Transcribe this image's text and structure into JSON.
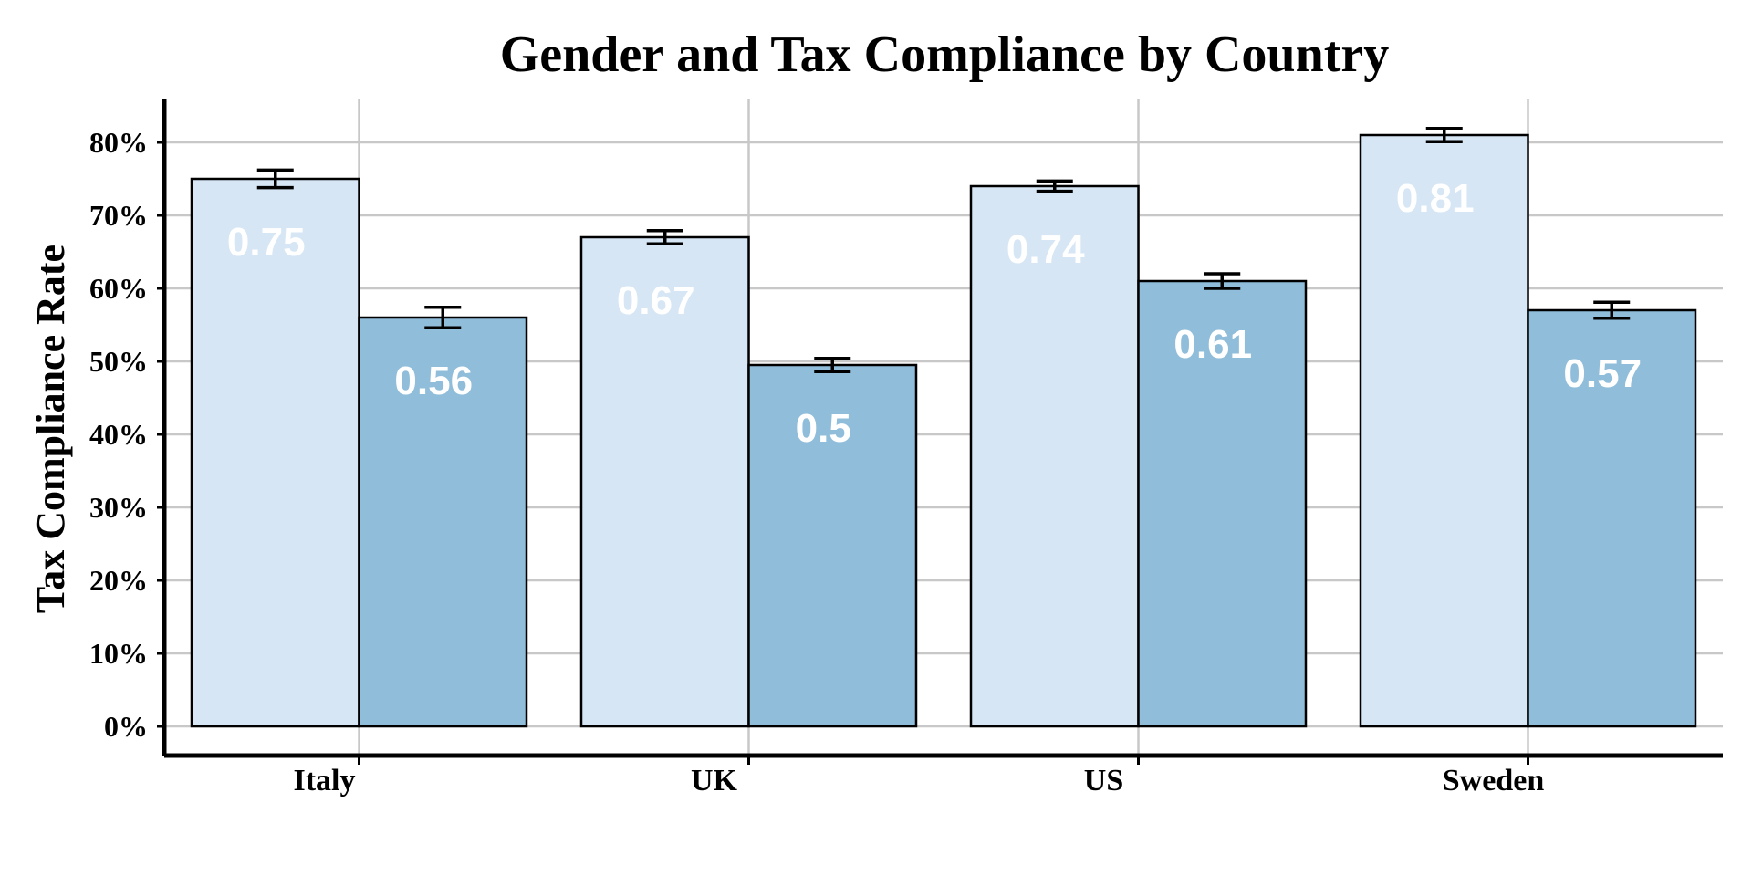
{
  "chart_data": {
    "type": "bar",
    "title": "Gender and Tax Compliance by Country",
    "xlabel": "",
    "ylabel": "Tax Compliance Rate",
    "categories": [
      "Italy",
      "UK",
      "US",
      "Sweden"
    ],
    "series": [
      {
        "color": "#d6e6f4",
        "values": [
          0.75,
          0.67,
          0.74,
          0.81
        ],
        "errors": [
          0.012,
          0.009,
          0.007,
          0.009
        ],
        "labels": [
          "0.75",
          "0.67",
          "0.74",
          "0.81"
        ]
      },
      {
        "color": "#8fbdda",
        "values": [
          0.56,
          0.495,
          0.61,
          0.57
        ],
        "errors": [
          0.014,
          0.009,
          0.01,
          0.011
        ],
        "labels": [
          "0.56",
          "0.5",
          "0.61",
          "0.57"
        ]
      }
    ],
    "ylim": [
      -0.04,
      0.86
    ],
    "yticks": [
      0,
      0.1,
      0.2,
      0.3,
      0.4,
      0.5,
      0.6,
      0.7,
      0.8
    ],
    "ytick_labels": [
      "0%",
      "10%",
      "20%",
      "30%",
      "40%",
      "50%",
      "60%",
      "70%",
      "80%"
    ],
    "grid": true,
    "legend": "none"
  }
}
